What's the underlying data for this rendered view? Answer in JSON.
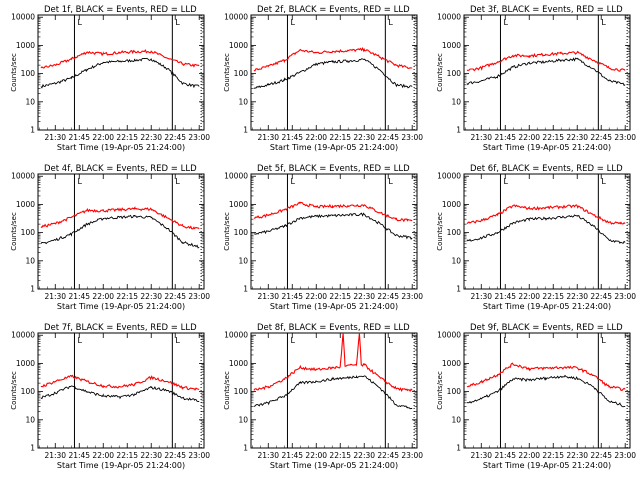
{
  "figure": {
    "x_ticks": [
      "21:30",
      "21:45",
      "22:00",
      "22:15",
      "22:30",
      "22:45",
      "23:00"
    ],
    "y_ticks": [
      "1",
      "10",
      "100",
      "1000",
      "10000"
    ],
    "xlabel": "Start Time (19-Apr-05 21:24:00)",
    "ylabel": "Counts/sec",
    "series_names": [
      "Events",
      "LLD"
    ],
    "colors": {
      "events": "#000000",
      "lld": "#ff0000",
      "markers": "#000000"
    },
    "marker_labels": [
      "L",
      "L"
    ]
  },
  "chart_data": [
    {
      "type": "line",
      "title": "Det  1f, BLACK = Events, RED = LLD",
      "detector": "1f",
      "xlim": [
        21.32,
        23.05
      ],
      "ylim": [
        1,
        12000
      ],
      "ylog": true,
      "grid": false,
      "x": [
        21.35,
        21.5,
        21.67,
        21.83,
        22.0,
        22.17,
        22.33,
        22.5,
        22.67,
        22.83,
        22.95,
        23.0
      ],
      "series": [
        {
          "name": "Events",
          "values": [
            35,
            45,
            70,
            140,
            250,
            270,
            300,
            330,
            150,
            45,
            37,
            35
          ]
        },
        {
          "name": "LLD",
          "values": [
            160,
            200,
            330,
            580,
            500,
            560,
            600,
            620,
            350,
            220,
            195,
            190
          ]
        }
      ]
    },
    {
      "type": "line",
      "title": "Det  2f, BLACK = Events, RED = LLD",
      "detector": "2f",
      "xlim": [
        21.32,
        23.05
      ],
      "ylim": [
        1,
        12000
      ],
      "ylog": true,
      "grid": false,
      "x": [
        21.35,
        21.5,
        21.67,
        21.83,
        22.0,
        22.17,
        22.33,
        22.5,
        22.67,
        22.83,
        22.95,
        23.0
      ],
      "series": [
        {
          "name": "Events",
          "values": [
            30,
            40,
            60,
            110,
            220,
            260,
            280,
            320,
            130,
            40,
            35,
            35
          ]
        },
        {
          "name": "LLD",
          "values": [
            130,
            180,
            300,
            680,
            550,
            620,
            650,
            720,
            380,
            200,
            165,
            160
          ]
        }
      ]
    },
    {
      "type": "line",
      "title": "Det  3f, BLACK = Events, RED = LLD",
      "detector": "3f",
      "xlim": [
        21.32,
        23.05
      ],
      "ylim": [
        1,
        12000
      ],
      "ylog": true,
      "grid": false,
      "x": [
        21.35,
        21.5,
        21.67,
        21.83,
        22.0,
        22.17,
        22.33,
        22.5,
        22.67,
        22.83,
        22.95,
        23.0
      ],
      "series": [
        {
          "name": "Events",
          "values": [
            45,
            55,
            80,
            170,
            240,
            260,
            300,
            330,
            150,
            55,
            45,
            40
          ]
        },
        {
          "name": "LLD",
          "values": [
            130,
            160,
            260,
            440,
            430,
            480,
            520,
            560,
            300,
            160,
            135,
            130
          ]
        }
      ]
    },
    {
      "type": "line",
      "title": "Det  4f, BLACK = Events, RED = LLD",
      "detector": "4f",
      "xlim": [
        21.32,
        23.05
      ],
      "ylim": [
        1,
        12000
      ],
      "ylog": true,
      "grid": false,
      "x": [
        21.35,
        21.5,
        21.67,
        21.83,
        22.0,
        22.17,
        22.33,
        22.5,
        22.67,
        22.83,
        22.95,
        23.0
      ],
      "series": [
        {
          "name": "Events",
          "values": [
            40,
            55,
            90,
            200,
            320,
            350,
            380,
            340,
            140,
            45,
            35,
            30
          ]
        },
        {
          "name": "LLD",
          "values": [
            160,
            210,
            350,
            620,
            600,
            650,
            700,
            680,
            330,
            170,
            140,
            135
          ]
        }
      ]
    },
    {
      "type": "line",
      "title": "Det  5f, BLACK = Events, RED = LLD",
      "detector": "5f",
      "xlim": [
        21.32,
        23.05
      ],
      "ylim": [
        1,
        12000
      ],
      "ylog": true,
      "grid": false,
      "x": [
        21.35,
        21.5,
        21.67,
        21.83,
        22.0,
        22.17,
        22.33,
        22.5,
        22.67,
        22.83,
        22.95,
        23.0
      ],
      "series": [
        {
          "name": "Events",
          "values": [
            90,
            110,
            170,
            330,
            380,
            400,
            420,
            450,
            200,
            80,
            70,
            65
          ]
        },
        {
          "name": "LLD",
          "values": [
            330,
            420,
            650,
            1100,
            820,
            870,
            900,
            950,
            500,
            300,
            270,
            265
          ]
        }
      ]
    },
    {
      "type": "line",
      "title": "Det  6f, BLACK = Events, RED = LLD",
      "detector": "6f",
      "xlim": [
        21.32,
        23.05
      ],
      "ylim": [
        1,
        12000
      ],
      "ylog": true,
      "grid": false,
      "x": [
        21.35,
        21.5,
        21.67,
        21.83,
        22.0,
        22.17,
        22.33,
        22.5,
        22.67,
        22.83,
        22.95,
        23.0
      ],
      "series": [
        {
          "name": "Events",
          "values": [
            50,
            65,
            100,
            220,
            300,
            320,
            350,
            400,
            170,
            55,
            45,
            45
          ]
        },
        {
          "name": "LLD",
          "values": [
            210,
            270,
            430,
            900,
            720,
            760,
            820,
            880,
            420,
            230,
            210,
            210
          ]
        }
      ]
    },
    {
      "type": "line",
      "title": "Det  7f, BLACK = Events, RED = LLD",
      "detector": "7f",
      "xlim": [
        21.32,
        23.05
      ],
      "ylim": [
        1,
        12000
      ],
      "ylog": true,
      "grid": false,
      "x": [
        21.35,
        21.5,
        21.67,
        21.83,
        22.0,
        22.17,
        22.33,
        22.5,
        22.67,
        22.83,
        22.95,
        23.0
      ],
      "series": [
        {
          "name": "Events",
          "values": [
            60,
            90,
            160,
            100,
            70,
            65,
            80,
            140,
            110,
            60,
            50,
            45
          ]
        },
        {
          "name": "LLD",
          "values": [
            150,
            230,
            350,
            230,
            160,
            150,
            180,
            320,
            230,
            140,
            125,
            120
          ]
        }
      ]
    },
    {
      "type": "line",
      "title": "Det  8f, BLACK = Events, RED = LLD",
      "detector": "8f",
      "xlim": [
        21.32,
        23.05
      ],
      "ylim": [
        1,
        12000
      ],
      "ylog": true,
      "grid": false,
      "x": [
        21.35,
        21.5,
        21.67,
        21.83,
        22.0,
        22.17,
        22.25,
        22.28,
        22.3,
        22.42,
        22.45,
        22.47,
        22.5,
        22.67,
        22.83,
        22.95,
        23.0
      ],
      "series": [
        {
          "name": "Events",
          "values": [
            30,
            40,
            70,
            200,
            230,
            280,
            300,
            300,
            300,
            350,
            350,
            350,
            360,
            130,
            35,
            28,
            25
          ]
        },
        {
          "name": "LLD",
          "values": [
            110,
            150,
            280,
            720,
            600,
            700,
            750,
            12000,
            800,
            900,
            12000,
            850,
            900,
            300,
            130,
            110,
            110
          ]
        }
      ]
    },
    {
      "type": "line",
      "title": "Det  9f, BLACK = Events, RED = LLD",
      "detector": "9f",
      "xlim": [
        21.32,
        23.05
      ],
      "ylim": [
        1,
        12000
      ],
      "ylog": true,
      "grid": false,
      "x": [
        21.35,
        21.5,
        21.67,
        21.83,
        22.0,
        22.17,
        22.33,
        22.5,
        22.67,
        22.83,
        22.95,
        23.0
      ],
      "series": [
        {
          "name": "Events",
          "values": [
            40,
            55,
            100,
            280,
            260,
            300,
            350,
            300,
            150,
            45,
            35,
            30
          ]
        },
        {
          "name": "LLD",
          "values": [
            150,
            220,
            400,
            950,
            650,
            680,
            720,
            700,
            380,
            150,
            125,
            120
          ]
        }
      ]
    }
  ]
}
